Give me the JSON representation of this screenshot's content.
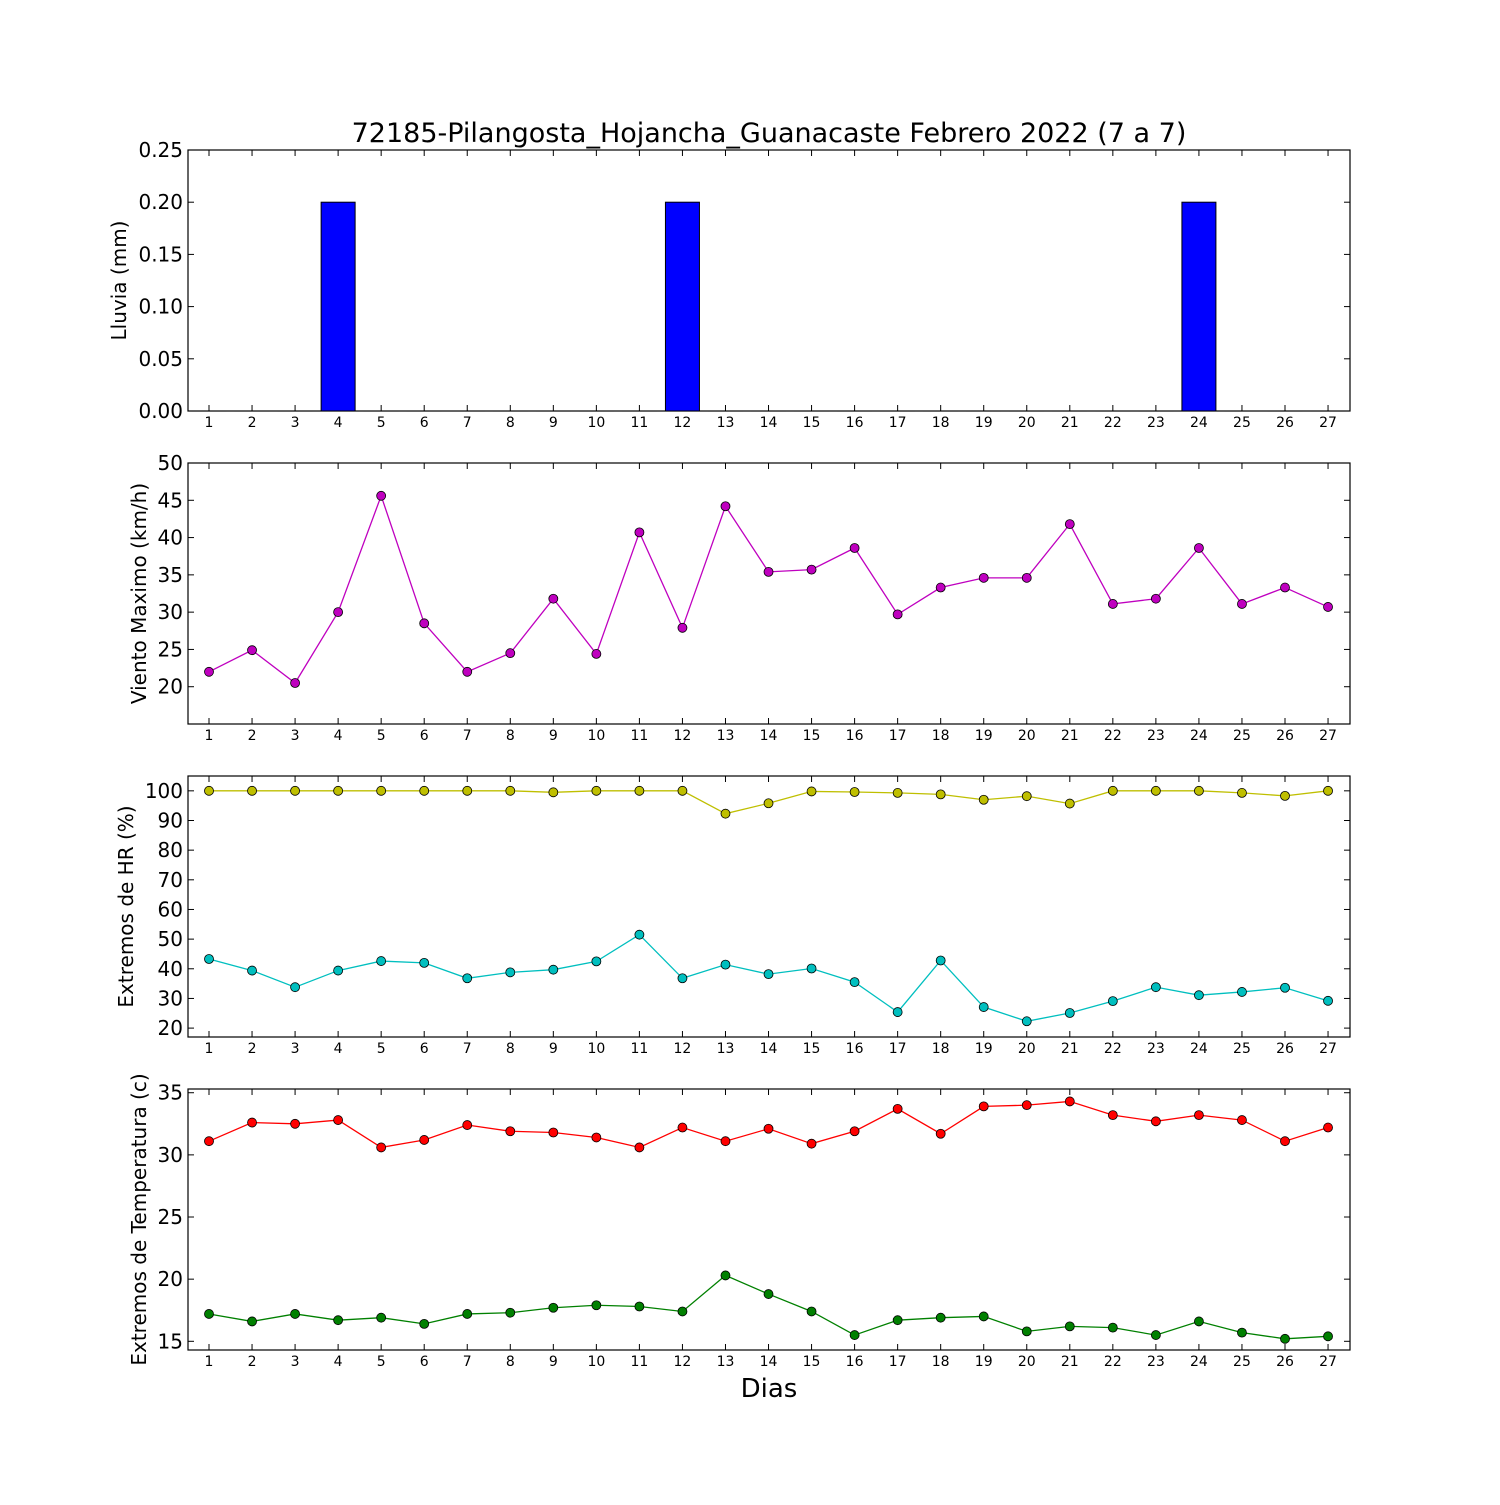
{
  "title": "72185-Pilangosta_Hojancha_Guanacaste Febrero 2022  (7 a 7)",
  "xlabel": "Dias",
  "chart_data": [
    {
      "type": "bar",
      "ylabel": "Lluvia (mm)",
      "ylim": [
        0,
        0.25
      ],
      "yticks": [
        "0.00",
        "0.05",
        "0.10",
        "0.15",
        "0.20",
        "0.25"
      ],
      "x": [
        1,
        2,
        3,
        4,
        5,
        6,
        7,
        8,
        9,
        10,
        11,
        12,
        13,
        14,
        15,
        16,
        17,
        18,
        19,
        20,
        21,
        22,
        23,
        24,
        25,
        26,
        27
      ],
      "series": [
        {
          "color": "#0000ff",
          "values": [
            0,
            0,
            0,
            0.2,
            0,
            0,
            0,
            0,
            0,
            0,
            0,
            0.2,
            0,
            0,
            0,
            0,
            0,
            0,
            0,
            0,
            0,
            0,
            0,
            0.2,
            0,
            0,
            0
          ]
        }
      ]
    },
    {
      "type": "line",
      "ylabel": "Viento Maximo (km/h)",
      "ylim": [
        15,
        50
      ],
      "yticks": [
        "20",
        "25",
        "30",
        "35",
        "40",
        "45",
        "50"
      ],
      "x": [
        1,
        2,
        3,
        4,
        5,
        6,
        7,
        8,
        9,
        10,
        11,
        12,
        13,
        14,
        15,
        16,
        17,
        18,
        19,
        20,
        21,
        22,
        23,
        24,
        25,
        26,
        27
      ],
      "series": [
        {
          "color": "#bf00bf",
          "values": [
            22.0,
            24.9,
            20.5,
            30.0,
            45.6,
            28.5,
            22.0,
            24.5,
            31.8,
            24.4,
            40.7,
            27.9,
            44.2,
            35.4,
            35.7,
            38.6,
            29.7,
            33.3,
            34.6,
            34.6,
            41.8,
            31.1,
            31.8,
            38.6,
            31.1,
            33.3,
            30.7
          ]
        }
      ]
    },
    {
      "type": "line",
      "ylabel": "Extremos de HR (%)",
      "ylim": [
        17,
        105
      ],
      "yticks": [
        "20",
        "30",
        "40",
        "50",
        "60",
        "70",
        "80",
        "90",
        "100"
      ],
      "x": [
        1,
        2,
        3,
        4,
        5,
        6,
        7,
        8,
        9,
        10,
        11,
        12,
        13,
        14,
        15,
        16,
        17,
        18,
        19,
        20,
        21,
        22,
        23,
        24,
        25,
        26,
        27
      ],
      "series": [
        {
          "color": "#bfbf00",
          "values": [
            100,
            100,
            100,
            100,
            100,
            100,
            100,
            100,
            99.5,
            100,
            100,
            100,
            92.3,
            95.8,
            99.8,
            99.6,
            99.3,
            98.8,
            97.0,
            98.2,
            95.7,
            100,
            100,
            100,
            99.3,
            98.3,
            100
          ]
        },
        {
          "color": "#00bfbf",
          "values": [
            43.3,
            39.4,
            33.8,
            39.4,
            42.6,
            42.0,
            36.8,
            38.8,
            39.7,
            42.5,
            51.5,
            36.8,
            41.4,
            38.2,
            40.1,
            35.5,
            25.4,
            42.8,
            27.1,
            22.3,
            25.1,
            29.1,
            33.8,
            31.1,
            32.2,
            33.6,
            29.2
          ]
        }
      ]
    },
    {
      "type": "line",
      "ylabel": "Extremos de Temperatura (c)",
      "ylim": [
        14.3,
        35.3
      ],
      "yticks": [
        "15",
        "20",
        "25",
        "30",
        "35"
      ],
      "x": [
        1,
        2,
        3,
        4,
        5,
        6,
        7,
        8,
        9,
        10,
        11,
        12,
        13,
        14,
        15,
        16,
        17,
        18,
        19,
        20,
        21,
        22,
        23,
        24,
        25,
        26,
        27
      ],
      "series": [
        {
          "color": "#ff0000",
          "values": [
            31.1,
            32.6,
            32.5,
            32.8,
            30.6,
            31.2,
            32.4,
            31.9,
            31.8,
            31.4,
            30.6,
            32.2,
            31.1,
            32.1,
            30.9,
            31.9,
            33.7,
            31.7,
            33.9,
            34.0,
            34.3,
            33.2,
            32.7,
            33.2,
            32.8,
            31.1,
            32.2
          ]
        },
        {
          "color": "#008000",
          "values": [
            17.2,
            16.6,
            17.2,
            16.7,
            16.9,
            16.4,
            17.2,
            17.3,
            17.7,
            17.9,
            17.8,
            17.4,
            20.3,
            18.8,
            17.4,
            15.5,
            16.7,
            16.9,
            17.0,
            15.8,
            16.2,
            16.1,
            15.5,
            16.6,
            15.7,
            15.2,
            15.4
          ]
        }
      ]
    }
  ]
}
